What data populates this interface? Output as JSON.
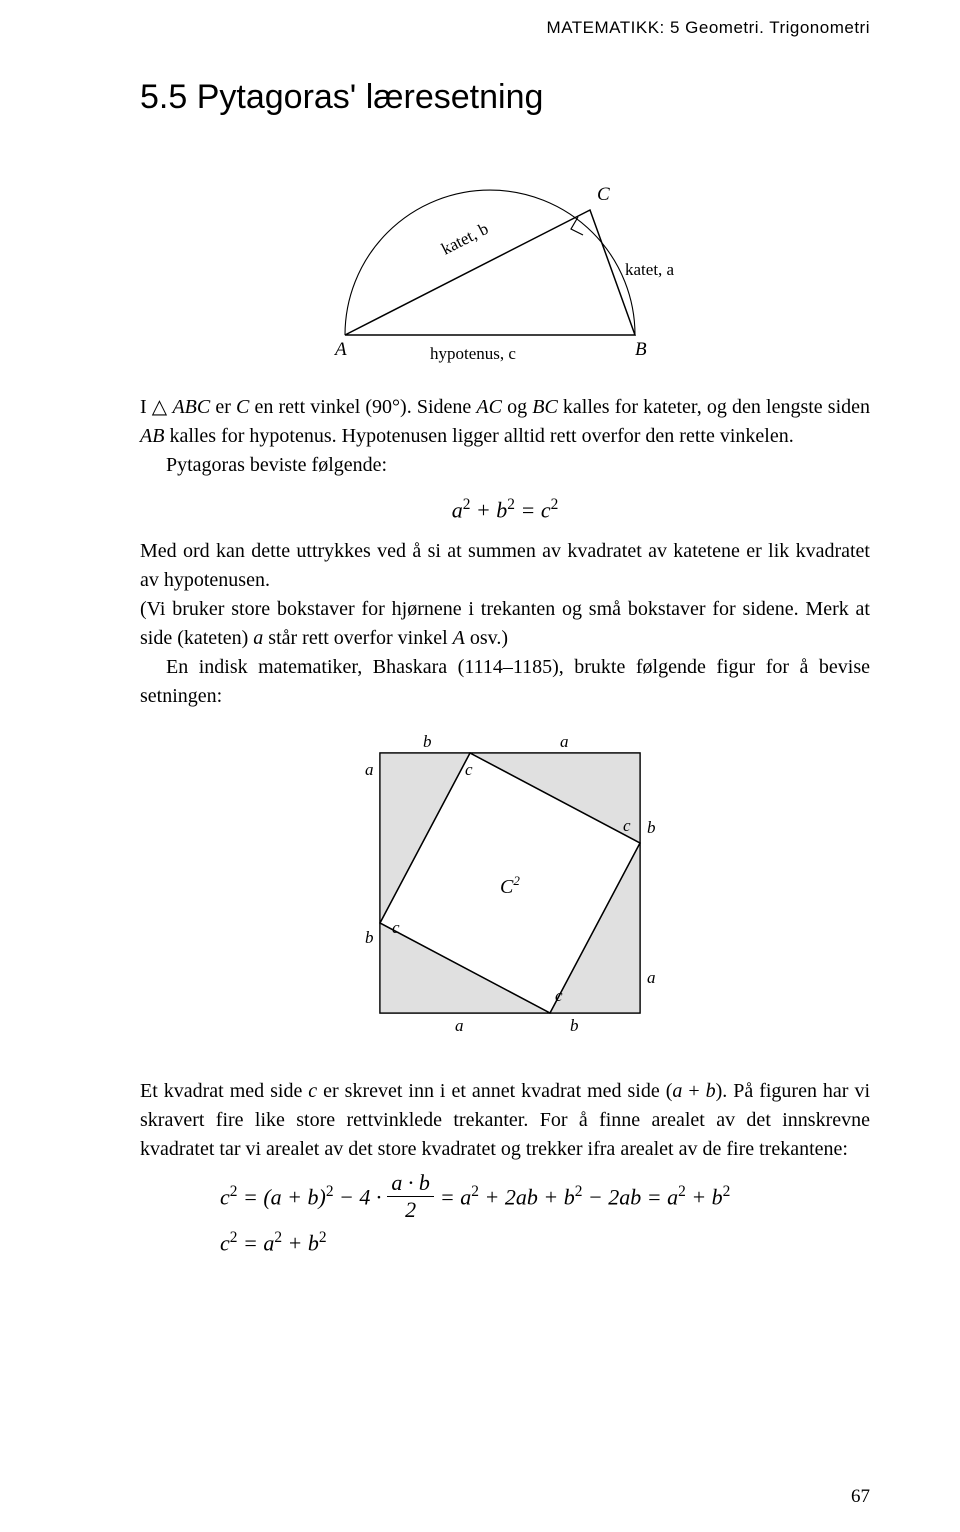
{
  "running_head": "MATEMATIKK: 5 Geometri. Trigonometri",
  "section_title": "5.5 Pytagoras' læresetning",
  "fig1": {
    "labels": {
      "A": "A",
      "B": "B",
      "C": "C",
      "katet_a": "katet, a",
      "katet_b": "katet, b",
      "hypotenus": "hypotenus, c"
    },
    "stroke": "#000",
    "text_fontsize": 18
  },
  "para1_html": "I △ <span class='mi'>ABC</span> er <span class='mi'>C</span> en rett vinkel (90°). Sidene <span class='mi'>AC</span> og <span class='mi'>BC</span> kalles for kateter, og den lengste siden <span class='mi'>AB</span> kalles for hypotenus. Hypotenusen ligger alltid rett overfor den rette vinkelen.",
  "para2_html": "<span class='indent'></span>Pytagoras beviste følgende:",
  "eq1_html": "<span class='mi'>a</span><span class='sup'>2</span> + <span class='mi'>b</span><span class='sup'>2</span> = <span class='mi'>c</span><span class='sup'>2</span>",
  "para3_html": "Med ord kan dette uttrykkes ved å si at summen av kvadratet av katetene er lik kvadratet av hypotenusen.",
  "para4_html": "(Vi bruker store bokstaver for hjørnene i trekanten og små bokstaver for sidene. Merk at side (kateten) <span class='mi'>a</span> står rett overfor vinkel <span class='mi'>A</span> osv.)",
  "para5_html": "<span class='indent'></span>En indisk matematiker, Bhaskara (1114–1185), brukte følgende figur for å bevise setningen:",
  "fig2": {
    "stroke": "#000",
    "fill": "#e0e0e0",
    "text_fontsize": 17,
    "labels": {
      "a": "a",
      "b": "b",
      "c": "c",
      "C2": "C"
    }
  },
  "para6_html": "Et kvadrat med side <span class='mi'>c</span> er skrevet inn i et annet kvadrat med side (<span class='mi'>a</span> + <span class='mi'>b</span>). På figuren har vi skravert fire like store rettvinklede trekanter. For å finne arealet av det innskrevne kvadratet tar vi arealet av det store kvadratet og trekker ifra arealet av de fire trekantene:",
  "der1_html": "c<span class='sup'>2</span> <span class='rm'>=</span> <span class='rm'>(</span>a <span class='rm'>+</span> b<span class='rm'>)</span><span class='sup'>2</span> <span class='rm'>−</span> <span class='rm'>4</span> <span class='rm'>·</span> ",
  "der1_frac_num": "a · b",
  "der1_frac_den": "2",
  "der1_tail_html": " <span class='rm'>=</span> a<span class='sup'>2</span> <span class='rm'>+</span> <span class='rm'>2</span>ab <span class='rm'>+</span> b<span class='sup'>2</span> <span class='rm'>−</span> <span class='rm'>2</span>ab <span class='rm'>=</span> a<span class='sup'>2</span> <span class='rm'>+</span> b<span class='sup'>2</span>",
  "der2_html": "c<span class='sup'>2</span> <span class='rm'>=</span> a<span class='sup'>2</span> <span class='rm'>+</span> b<span class='sup'>2</span>",
  "page_number": "67"
}
